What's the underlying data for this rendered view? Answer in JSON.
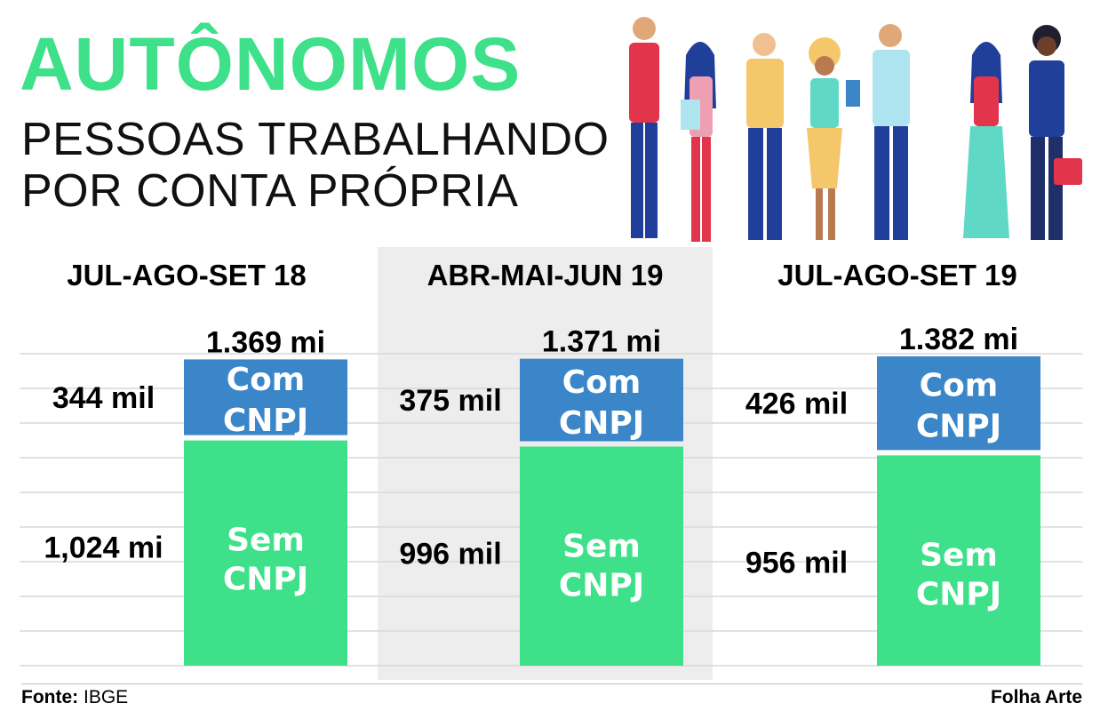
{
  "header": {
    "title": "AUTÔNOMOS",
    "subtitle_line1": "PESSOAS TRABALHANDO",
    "subtitle_line2": "POR CONTA PRÓPRIA"
  },
  "footer": {
    "source_label": "Fonte:",
    "source_value": "IBGE",
    "credit": "Folha Arte"
  },
  "illustration": {
    "icon": "group-of-people-illustration"
  },
  "chart_data": {
    "type": "bar",
    "stacked": true,
    "unit": "mil",
    "categories": [
      "JUL-AGO-SET 18",
      "ABR-MAI-JUN 19",
      "JUL-AGO-SET 19"
    ],
    "totals": [
      1369,
      1371,
      1382
    ],
    "total_labels": [
      "1.369 mi",
      "1.371 mi",
      "1.382 mi"
    ],
    "series": [
      {
        "name": "Sem CNPJ",
        "bar_label": [
          "Sem",
          "CNPJ"
        ],
        "color": "#3ee08a",
        "values": [
          1024,
          996,
          956
        ],
        "value_labels": [
          "1,024 mi",
          "996 mil",
          "956 mil"
        ]
      },
      {
        "name": "Com CNPJ",
        "bar_label": [
          "Com",
          "CNPJ"
        ],
        "color": "#3a86c8",
        "values": [
          344,
          375,
          426
        ],
        "value_labels": [
          "344 mil",
          "375 mil",
          "426 mil"
        ]
      }
    ],
    "highlight_category_index": 1,
    "grid": true
  }
}
